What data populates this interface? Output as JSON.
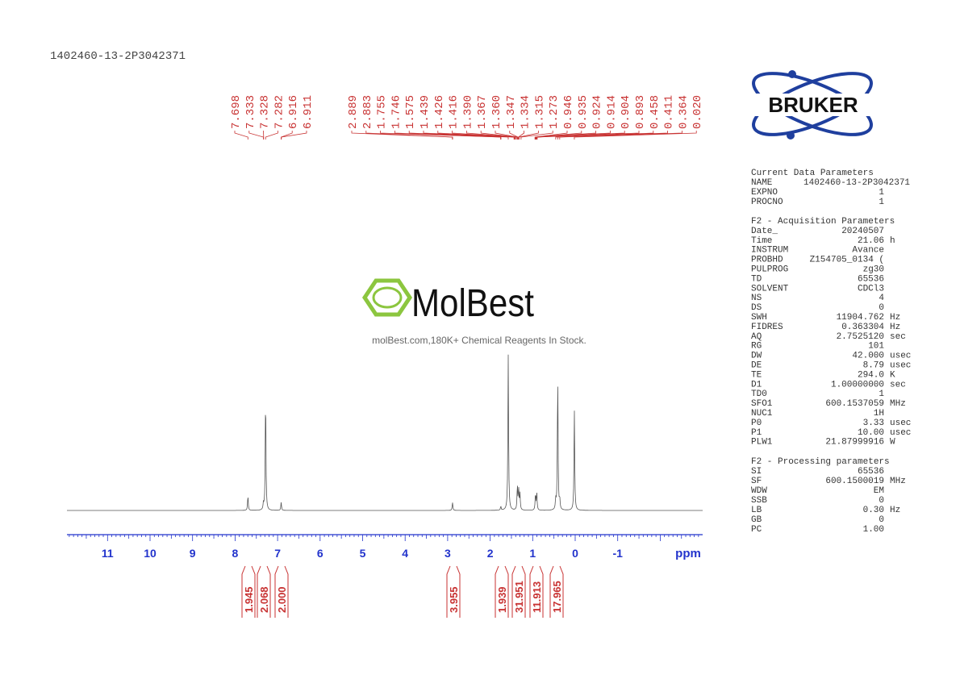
{
  "sample_id": "1402460-13-2P3042371",
  "peak_labels": [
    "7.698",
    "7.333",
    "7.328",
    "7.282",
    "6.916",
    "6.911",
    "2.889",
    "2.883",
    "1.755",
    "1.746",
    "1.575",
    "1.439",
    "1.426",
    "1.416",
    "1.390",
    "1.367",
    "1.360",
    "1.347",
    "1.334",
    "1.315",
    "1.273",
    "0.946",
    "0.935",
    "0.924",
    "0.914",
    "0.904",
    "0.893",
    "0.458",
    "0.411",
    "0.364",
    "0.020"
  ],
  "axis": {
    "ticks": [
      "11",
      "10",
      "9",
      "8",
      "7",
      "6",
      "5",
      "4",
      "3",
      "2",
      "1",
      "0",
      "-1"
    ],
    "unit": "ppm"
  },
  "integrals": [
    "1.945",
    "2.068",
    "2.000",
    "3.955",
    "1.939",
    "31.951",
    "11.913",
    "17.965"
  ],
  "logo": {
    "brand": "BRUKER"
  },
  "watermark": {
    "brand": "MolBest",
    "tagline": "molBest.com,180K+ Chemical Reagents In Stock."
  },
  "parameters": [
    {
      "heading": "Current Data Parameters",
      "rows": [
        [
          "NAME",
          "1402460-13-2P3042371"
        ],
        [
          "EXPNO",
          "1"
        ],
        [
          "PROCNO",
          "1"
        ]
      ]
    },
    {
      "heading": "F2 - Acquisition Parameters",
      "rows": [
        [
          "Date_",
          "20240507"
        ],
        [
          "Time",
          "21.06",
          "h"
        ],
        [
          "INSTRUM",
          "Avance"
        ],
        [
          "PROBHD",
          "Z154705_0134 ("
        ],
        [
          "PULPROG",
          "zg30"
        ],
        [
          "TD",
          "65536"
        ],
        [
          "SOLVENT",
          "CDCl3"
        ],
        [
          "NS",
          "4"
        ],
        [
          "DS",
          "0"
        ],
        [
          "SWH",
          "11904.762",
          "Hz"
        ],
        [
          "FIDRES",
          "0.363304",
          "Hz"
        ],
        [
          "AQ",
          "2.7525120",
          "sec"
        ],
        [
          "RG",
          "101"
        ],
        [
          "DW",
          "42.000",
          "usec"
        ],
        [
          "DE",
          "8.79",
          "usec"
        ],
        [
          "TE",
          "294.0",
          "K"
        ],
        [
          "D1",
          "1.00000000",
          "sec"
        ],
        [
          "TD0",
          "1"
        ],
        [
          "SFO1",
          "600.1537059",
          "MHz"
        ],
        [
          "NUC1",
          "1H"
        ],
        [
          "P0",
          "3.33",
          "usec"
        ],
        [
          "P1",
          "10.00",
          "usec"
        ],
        [
          "PLW1",
          "21.87999916",
          "W"
        ]
      ]
    },
    {
      "heading": "F2 - Processing parameters",
      "rows": [
        [
          "SI",
          "65536"
        ],
        [
          "SF",
          "600.1500019",
          "MHz"
        ],
        [
          "WDW",
          "EM"
        ],
        [
          "SSB",
          "0"
        ],
        [
          "LB",
          "0.30",
          "Hz"
        ],
        [
          "GB",
          "0"
        ],
        [
          "PC",
          "1.00"
        ]
      ]
    }
  ]
}
